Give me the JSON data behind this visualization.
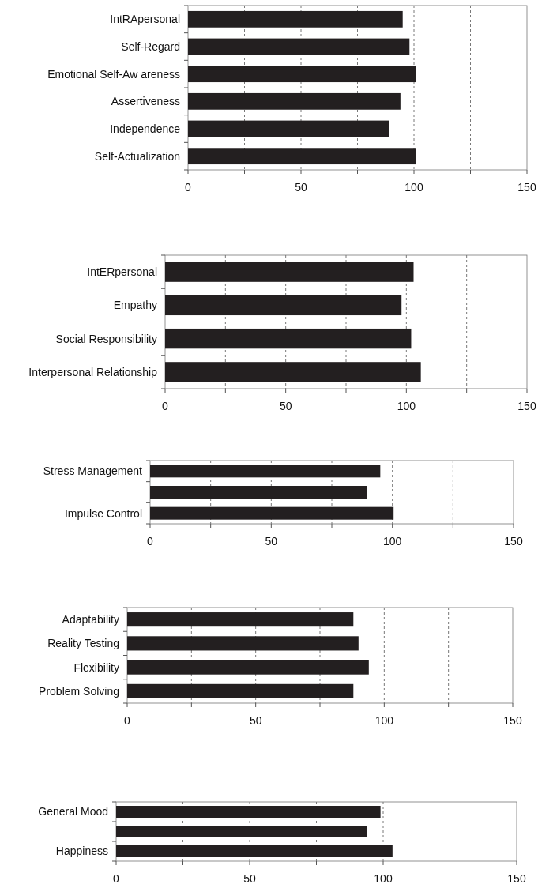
{
  "chart_data": [
    {
      "type": "bar",
      "orientation": "horizontal",
      "categories": [
        "IntRApersonal",
        "Self-Regard",
        "Emotional Self-Aw areness",
        "Assertiveness",
        "Independence",
        "Self-Actualization"
      ],
      "values": [
        95,
        98,
        101,
        94,
        89,
        101
      ],
      "color": "#231f20",
      "xlim": [
        0,
        150
      ],
      "xticks": [
        0,
        {
          "value": 25,
          "label": null
        },
        50,
        {
          "value": 75,
          "label": null
        },
        100,
        {
          "value": 125,
          "label": null
        },
        150
      ],
      "grid": "x"
    },
    {
      "type": "bar",
      "orientation": "horizontal",
      "categories": [
        "IntERpersonal",
        "Empathy",
        "Social Responsibility",
        "Interpersonal Relationship"
      ],
      "values": [
        103,
        98,
        102,
        106
      ],
      "color": "#231f20",
      "xlim": [
        0,
        150
      ],
      "xticks": [
        0,
        {
          "value": 25,
          "label": null
        },
        50,
        {
          "value": 75,
          "label": null
        },
        100,
        {
          "value": 125,
          "label": null
        },
        150
      ],
      "grid": "x"
    },
    {
      "type": "bar",
      "orientation": "horizontal",
      "categories": [
        "Stress Management",
        null,
        "Impulse Control"
      ],
      "values": [
        95,
        89.5,
        100.5
      ],
      "color": "#231f20",
      "xlim": [
        0,
        150
      ],
      "xticks": [
        0,
        {
          "value": 25,
          "label": null
        },
        50,
        {
          "value": 75,
          "label": null
        },
        100,
        {
          "value": 125,
          "label": null
        },
        150
      ],
      "grid": "x"
    },
    {
      "type": "bar",
      "orientation": "horizontal",
      "categories": [
        "Adaptability",
        "Reality Testing",
        "Flexibility",
        "Problem Solving"
      ],
      "values": [
        88,
        90,
        94,
        88
      ],
      "color": "#231f20",
      "xlim": [
        0,
        150
      ],
      "xticks": [
        0,
        {
          "value": 25,
          "label": null
        },
        50,
        {
          "value": 75,
          "label": null
        },
        100,
        {
          "value": 125,
          "label": null
        },
        150
      ],
      "grid": "x"
    },
    {
      "type": "bar",
      "orientation": "horizontal",
      "categories": [
        "General Mood",
        null,
        "Happiness"
      ],
      "values": [
        99,
        94,
        103.5
      ],
      "color": "#231f20",
      "xlim": [
        0,
        150
      ],
      "xticks": [
        0,
        {
          "value": 25,
          "label": null
        },
        50,
        {
          "value": 75,
          "label": null
        },
        100,
        {
          "value": 125,
          "label": null
        },
        150
      ],
      "grid": "x"
    }
  ]
}
